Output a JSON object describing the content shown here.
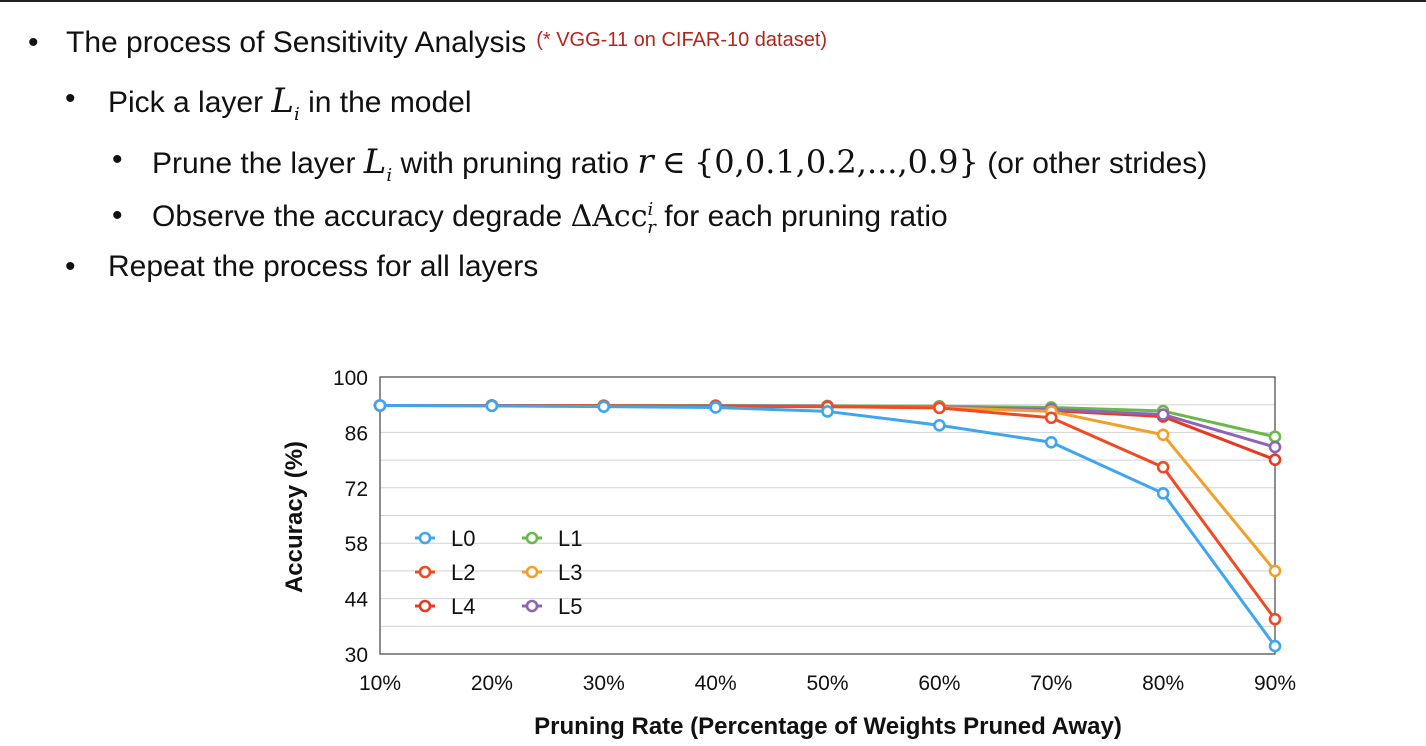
{
  "slide": {
    "bullet1": "The process of Sensitivity Analysis",
    "bullet1_note": "(* VGG-11 on CIFAR-10 dataset)",
    "bullet2_pre": "Pick a layer",
    "bullet2_post": "in the model",
    "bullet3_pre": "Prune the layer",
    "bullet3_mid": "with pruning ratio",
    "bullet3_set": "{0,0.1,0.2,...,0.9}",
    "bullet3_post": "(or other strides)",
    "bullet4_pre": "Observe the accuracy degrade",
    "bullet4_post": "for each pruning ratio",
    "bullet5": "Repeat the process for all layers",
    "math_L": "L",
    "math_i": "i",
    "math_r": "r",
    "math_in": "∈",
    "math_delta": "ΔAcc"
  },
  "chart_data": {
    "type": "line",
    "xlabel": "Pruning Rate (Percentage of Weights Pruned Away)",
    "ylabel": "Accuracy (%)",
    "categories": [
      "10%",
      "20%",
      "30%",
      "40%",
      "50%",
      "60%",
      "70%",
      "80%",
      "90%"
    ],
    "yticks": [
      30,
      44,
      58,
      72,
      86,
      100
    ],
    "ylim": [
      30,
      100
    ],
    "grid": true,
    "legend_position": "bottom-left",
    "series": [
      {
        "name": "L0",
        "color": "#3ea6f0",
        "values": [
          92.8,
          92.7,
          92.5,
          92.3,
          91.3,
          87.8,
          83.5,
          70.6,
          32.0
        ]
      },
      {
        "name": "L1",
        "color": "#6ab84b",
        "values": [
          92.8,
          92.8,
          92.8,
          92.8,
          92.7,
          92.6,
          92.3,
          91.4,
          84.9
        ]
      },
      {
        "name": "L2",
        "color": "#f04a23",
        "values": [
          92.8,
          92.8,
          92.7,
          92.6,
          92.5,
          92.2,
          89.7,
          77.2,
          38.8
        ]
      },
      {
        "name": "L3",
        "color": "#f2a02c",
        "values": [
          92.8,
          92.7,
          92.7,
          92.6,
          92.5,
          92.3,
          91.3,
          85.4,
          51.0
        ]
      },
      {
        "name": "L4",
        "color": "#e8381f",
        "values": [
          92.8,
          92.8,
          92.7,
          92.7,
          92.6,
          92.4,
          91.5,
          90.0,
          79.1
        ]
      },
      {
        "name": "L5",
        "color": "#8e63b8",
        "values": [
          92.8,
          92.8,
          92.7,
          92.7,
          92.6,
          92.4,
          91.8,
          90.5,
          82.3
        ]
      }
    ]
  }
}
